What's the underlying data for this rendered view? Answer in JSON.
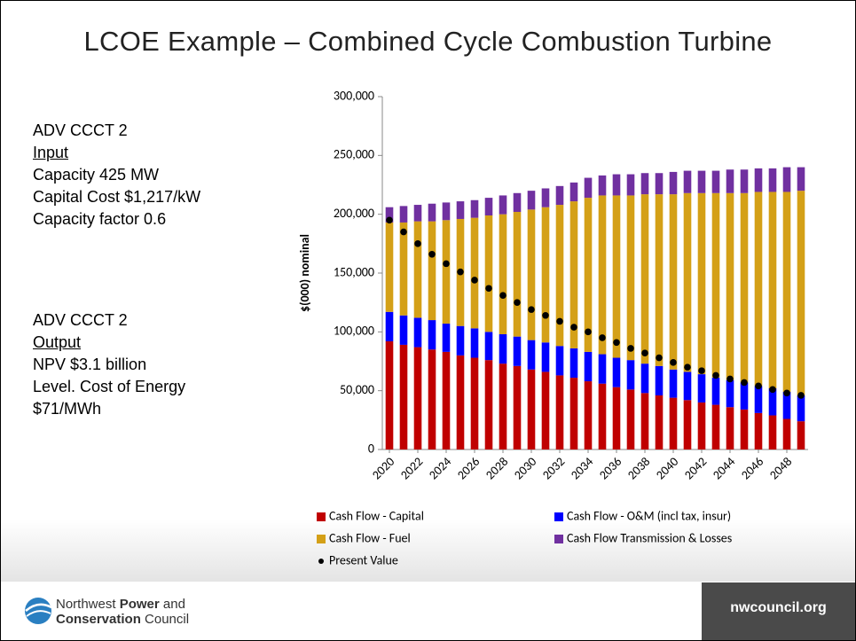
{
  "title": "LCOE Example – Combined Cycle Combustion Turbine",
  "input_block": {
    "heading": "ADV CCCT 2",
    "label": "Input",
    "lines": [
      "Capacity 425 MW",
      "Capital Cost $1,217/kW",
      "Capacity factor 0.6"
    ]
  },
  "output_block": {
    "heading": "ADV CCCT 2",
    "label": "Output",
    "lines": [
      "NPV $3.1 billion",
      "Level. Cost of Energy",
      "$71/MWh"
    ]
  },
  "footer": {
    "logo_line1": [
      "Northwest",
      "Power",
      "and"
    ],
    "logo_line2": [
      "Conservation",
      "Council"
    ],
    "site": "nwcouncil.org"
  },
  "chart_data": {
    "type": "bar",
    "stacked": true,
    "ylabel": "$(000) nominal",
    "categories": [
      "2020",
      null,
      "2022",
      null,
      "2024",
      null,
      "2026",
      null,
      "2028",
      null,
      "2030",
      null,
      "2032",
      null,
      "2034",
      null,
      "2036",
      null,
      "2038",
      null,
      "2040",
      null,
      "2042",
      null,
      "2044",
      null,
      "2046",
      null,
      "2048",
      null
    ],
    "ylim": [
      0,
      300000
    ],
    "yticks": [
      0,
      {
        "value": 50000,
        "label": "50,000"
      },
      {
        "value": 100000,
        "label": "100,000"
      },
      {
        "value": 150000,
        "label": "150,000"
      },
      {
        "value": 200000,
        "label": "200,000"
      },
      {
        "value": 250000,
        "label": "250,000"
      },
      {
        "value": 300000,
        "label": "300,000"
      }
    ],
    "series": [
      {
        "name": "Cash Flow - Capital",
        "color": "#c00000",
        "type": "bar",
        "values": [
          92000,
          89000,
          87000,
          85000,
          83000,
          80000,
          78000,
          76000,
          73000,
          71000,
          68000,
          66000,
          63000,
          61000,
          58000,
          56000,
          53000,
          51000,
          48000,
          46000,
          44000,
          42000,
          40000,
          38000,
          36000,
          34000,
          31000,
          29000,
          26000,
          24000
        ]
      },
      {
        "name": "Cash Flow - O&M (incl tax, insur)",
        "color": "#0000ff",
        "type": "bar",
        "values": [
          25000,
          25000,
          25000,
          25000,
          24000,
          25000,
          25000,
          24000,
          25000,
          25000,
          25000,
          25000,
          25000,
          25000,
          25000,
          25000,
          25000,
          25000,
          25000,
          25000,
          24000,
          24000,
          24000,
          23000,
          23000,
          23000,
          23000,
          23000,
          23000,
          22000
        ]
      },
      {
        "name": "Cash Flow - Fuel",
        "color": "#d4a017",
        "type": "bar",
        "values": [
          76000,
          79000,
          82000,
          84000,
          88000,
          91000,
          94000,
          99000,
          102000,
          106000,
          111000,
          115000,
          120000,
          125000,
          131000,
          135000,
          138000,
          140000,
          144000,
          146000,
          149000,
          152000,
          154000,
          157000,
          159000,
          161000,
          165000,
          167000,
          170000,
          174000
        ]
      },
      {
        "name": "Cash Flow Transmission & Losses",
        "color": "#7030a0",
        "type": "bar",
        "values": [
          13000,
          14000,
          14000,
          15000,
          15000,
          15000,
          15000,
          15000,
          16000,
          16000,
          16000,
          16000,
          16000,
          16000,
          17000,
          17000,
          18000,
          18000,
          18000,
          18000,
          19000,
          19000,
          19000,
          19000,
          20000,
          20000,
          20000,
          20000,
          21000,
          20000
        ]
      },
      {
        "name": "Present Value",
        "color": "#000000",
        "type": "scatter",
        "values": [
          195000,
          185000,
          175000,
          166000,
          158000,
          151000,
          144000,
          137000,
          131000,
          125000,
          119000,
          114000,
          109000,
          104000,
          100000,
          95000,
          91000,
          86000,
          82000,
          78000,
          74000,
          70000,
          67000,
          63000,
          60000,
          57000,
          54000,
          51000,
          48000,
          46000
        ]
      }
    ]
  }
}
